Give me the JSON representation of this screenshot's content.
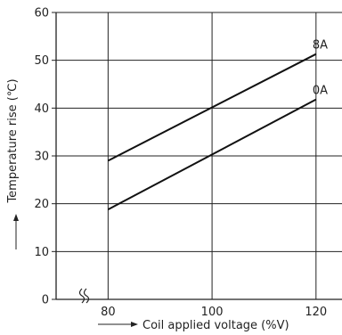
{
  "chart_data": {
    "type": "line",
    "xlabel": "Coil applied voltage (%V)",
    "ylabel": "Temperature rise (℃)",
    "xlim": [
      70,
      125
    ],
    "ylim": [
      0,
      60
    ],
    "x_ticks": [
      "80",
      "100",
      "120"
    ],
    "y_ticks": [
      "0",
      "10",
      "20",
      "30",
      "40",
      "50",
      "60"
    ],
    "x_tick_values": [
      80,
      100,
      120
    ],
    "y_tick_values": [
      0,
      10,
      20,
      30,
      40,
      50,
      60
    ],
    "axis_break": true,
    "grid": true,
    "series": [
      {
        "name": "8A",
        "x": [
          80,
          120
        ],
        "y": [
          29,
          51.3
        ]
      },
      {
        "name": "0A",
        "x": [
          80,
          120
        ],
        "y": [
          18.8,
          41.8
        ]
      }
    ]
  }
}
